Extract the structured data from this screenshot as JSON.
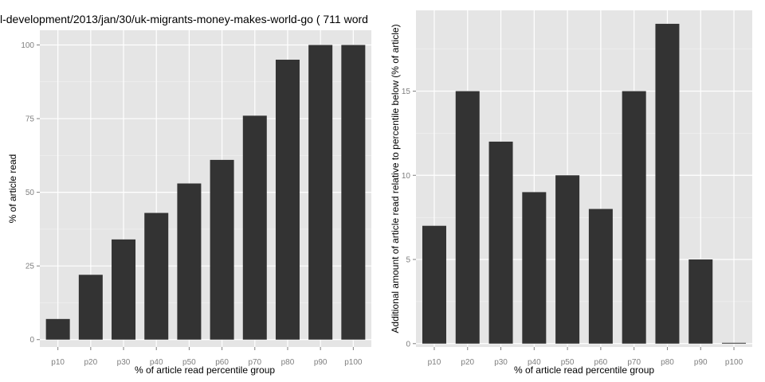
{
  "title": "l-development/2013/jan/30/uk-migrants-money-makes-world-go ( 711 word",
  "colors": {
    "panel": "#e5e5e5",
    "grid_major": "#ffffff",
    "grid_minor": "#f2f2f2",
    "bar": "#333333",
    "tick_text": "#7f7f7f"
  },
  "chart_data": [
    {
      "type": "bar",
      "title": "l-development/2013/jan/30/uk-migrants-money-makes-world-go ( 711 word",
      "xlabel": "% of article read percentile group",
      "ylabel": "% of article read",
      "categories": [
        "p10",
        "p20",
        "p30",
        "p40",
        "p50",
        "p60",
        "p70",
        "p80",
        "p90",
        "p100"
      ],
      "values": [
        7,
        22,
        34,
        43,
        53,
        61,
        76,
        95,
        100,
        100
      ],
      "ylim": [
        -2.5,
        105
      ],
      "yticks": [
        0,
        25,
        50,
        75,
        100
      ],
      "grid": true
    },
    {
      "type": "bar",
      "title": "",
      "xlabel": "% of article read percentile group",
      "ylabel": "Additional amount of article read relative to percentile below (% of article)",
      "categories": [
        "p10",
        "p20",
        "p30",
        "p40",
        "p50",
        "p60",
        "p70",
        "p80",
        "p90",
        "p100"
      ],
      "values": [
        7,
        15,
        12,
        9,
        10,
        8,
        15,
        19,
        5,
        0
      ],
      "ylim": [
        -0.2,
        19.8
      ],
      "yticks": [
        0,
        5,
        10,
        15
      ],
      "grid": true
    }
  ]
}
